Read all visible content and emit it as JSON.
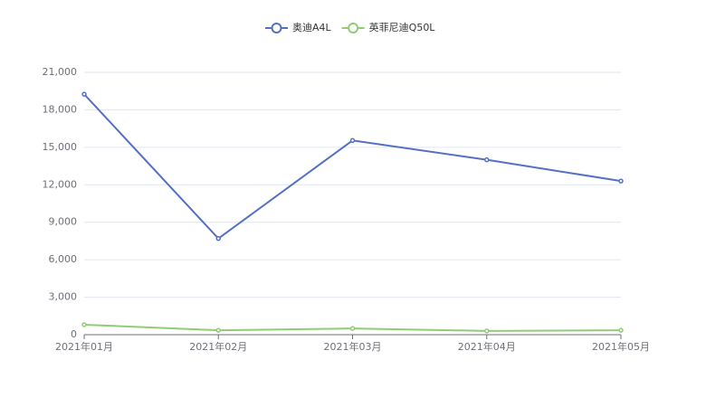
{
  "chart_data": {
    "type": "line",
    "categories": [
      "2021年01月",
      "2021年02月",
      "2021年03月",
      "2021年04月",
      "2021年05月"
    ],
    "series": [
      {
        "name": "奥迪A4L",
        "color": "#5470c6",
        "values": [
          19250,
          7700,
          15550,
          14000,
          12300
        ]
      },
      {
        "name": "英菲尼迪Q50L",
        "color": "#91cc75",
        "values": [
          800,
          350,
          500,
          300,
          350
        ]
      }
    ],
    "ylim": [
      0,
      21000
    ],
    "yticks": [
      0,
      {
        "value": 3000,
        "label": "3,000"
      },
      {
        "value": 6000,
        "label": "6,000"
      },
      {
        "value": 9000,
        "label": "9,000"
      },
      {
        "value": 12000,
        "label": "12,000"
      },
      {
        "value": 15000,
        "label": "15,000"
      },
      {
        "value": 18000,
        "label": "18,000"
      },
      {
        "value": 21000,
        "label": "21,000"
      }
    ],
    "grid": true,
    "legend": "top"
  }
}
